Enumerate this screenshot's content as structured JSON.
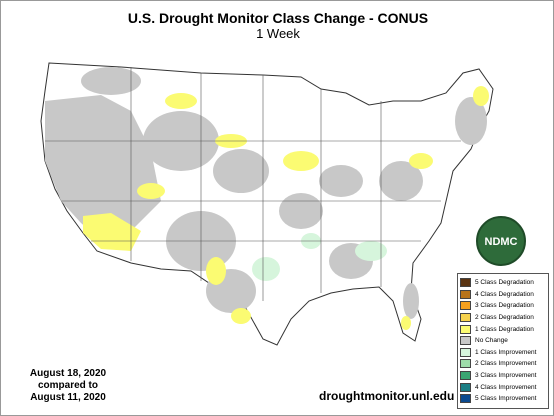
{
  "header": {
    "title": "U.S. Drought Monitor Class Change - CONUS",
    "subtitle": "1 Week"
  },
  "legend": {
    "items": [
      {
        "label": "5 Class Degradation",
        "color": "#5a3412"
      },
      {
        "label": "4 Class Degradation",
        "color": "#b8741a"
      },
      {
        "label": "3 Class Degradation",
        "color": "#f5a01e"
      },
      {
        "label": "2 Class Degradation",
        "color": "#f7d34e"
      },
      {
        "label": "1 Class Degradation",
        "color": "#fbfb72"
      },
      {
        "label": "No Change",
        "color": "#c8c8c8"
      },
      {
        "label": "1 Class Improvement",
        "color": "#d6f5dc"
      },
      {
        "label": "2 Class Improvement",
        "color": "#9edcaa"
      },
      {
        "label": "3 Class Improvement",
        "color": "#3aa672"
      },
      {
        "label": "4 Class Improvement",
        "color": "#1b7e84"
      },
      {
        "label": "5 Class Improvement",
        "color": "#0b4a8f"
      }
    ]
  },
  "dates": {
    "current": "August 18, 2020",
    "connector": "compared to",
    "previous": "August 11, 2020"
  },
  "logo": {
    "text": "NDMC"
  },
  "footer": {
    "url": "droughtmonitor.unl.edu"
  }
}
